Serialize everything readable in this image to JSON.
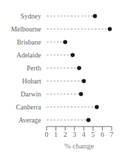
{
  "chart_data": {
    "type": "lollipop",
    "orientation": "horizontal",
    "categories": [
      "Sydney",
      "Melbourne",
      "Brisbane",
      "Adelaide",
      "Perth",
      "Hobart",
      "Darwin",
      "Canberra",
      "Average"
    ],
    "values": [
      5.2,
      6.8,
      2.0,
      2.8,
      3.5,
      4.0,
      3.7,
      5.4,
      4.5
    ],
    "xlabel": "% change",
    "xlim": [
      0,
      7
    ],
    "xticks": [
      0,
      1,
      2,
      3,
      4,
      5,
      6,
      7
    ],
    "color": "#1a1a1a",
    "line_style": "dashed",
    "marker": "o",
    "grid": false
  }
}
